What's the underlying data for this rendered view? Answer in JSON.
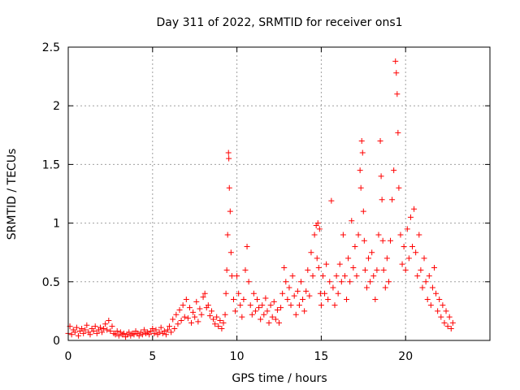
{
  "chart_data": {
    "type": "scatter",
    "title": "Day 311 of 2022, SRMTID for receiver ons1",
    "xlabel": "GPS time / hours",
    "ylabel": "SRMTID / TECUs",
    "xlim": [
      0,
      25
    ],
    "ylim": [
      0,
      2.5
    ],
    "xticks": [
      0,
      5,
      10,
      15,
      20
    ],
    "xtick_labels": [
      "0",
      "5",
      "10",
      "15",
      "20"
    ],
    "yticks": [
      0,
      0.5,
      1,
      1.5,
      2,
      2.5
    ],
    "ytick_labels": [
      "0",
      "0.5",
      "1",
      "1.5",
      "2",
      "2.5"
    ],
    "grid": true,
    "marker": "+",
    "color": "#ff0000",
    "series": [
      {
        "name": "SRMTID",
        "points": [
          [
            0.0,
            0.06
          ],
          [
            0.1,
            0.12
          ],
          [
            0.2,
            0.05
          ],
          [
            0.3,
            0.09
          ],
          [
            0.4,
            0.07
          ],
          [
            0.5,
            0.11
          ],
          [
            0.6,
            0.04
          ],
          [
            0.7,
            0.08
          ],
          [
            0.8,
            0.1
          ],
          [
            0.9,
            0.06
          ],
          [
            1.0,
            0.09
          ],
          [
            1.1,
            0.13
          ],
          [
            1.2,
            0.07
          ],
          [
            1.3,
            0.05
          ],
          [
            1.4,
            0.1
          ],
          [
            1.5,
            0.08
          ],
          [
            1.6,
            0.12
          ],
          [
            1.7,
            0.06
          ],
          [
            1.8,
            0.09
          ],
          [
            1.9,
            0.11
          ],
          [
            2.0,
            0.07
          ],
          [
            2.1,
            0.1
          ],
          [
            2.2,
            0.14
          ],
          [
            2.3,
            0.09
          ],
          [
            2.4,
            0.17
          ],
          [
            2.5,
            0.08
          ],
          [
            2.6,
            0.12
          ],
          [
            2.7,
            0.06
          ],
          [
            2.8,
            0.05
          ],
          [
            2.9,
            0.08
          ],
          [
            3.0,
            0.04
          ],
          [
            3.1,
            0.07
          ],
          [
            3.2,
            0.05
          ],
          [
            3.3,
            0.06
          ],
          [
            3.4,
            0.03
          ],
          [
            3.5,
            0.05
          ],
          [
            3.6,
            0.07
          ],
          [
            3.7,
            0.04
          ],
          [
            3.8,
            0.06
          ],
          [
            3.9,
            0.05
          ],
          [
            4.0,
            0.08
          ],
          [
            4.1,
            0.06
          ],
          [
            4.2,
            0.04
          ],
          [
            4.3,
            0.07
          ],
          [
            4.4,
            0.05
          ],
          [
            4.5,
            0.09
          ],
          [
            4.6,
            0.06
          ],
          [
            4.7,
            0.07
          ],
          [
            4.8,
            0.05
          ],
          [
            4.9,
            0.08
          ],
          [
            5.0,
            0.1
          ],
          [
            5.1,
            0.06
          ],
          [
            5.2,
            0.09
          ],
          [
            5.3,
            0.05
          ],
          [
            5.4,
            0.07
          ],
          [
            5.5,
            0.11
          ],
          [
            5.6,
            0.06
          ],
          [
            5.7,
            0.08
          ],
          [
            5.8,
            0.05
          ],
          [
            5.9,
            0.09
          ],
          [
            6.0,
            0.12
          ],
          [
            6.1,
            0.07
          ],
          [
            6.2,
            0.18
          ],
          [
            6.3,
            0.1
          ],
          [
            6.4,
            0.22
          ],
          [
            6.5,
            0.14
          ],
          [
            6.6,
            0.26
          ],
          [
            6.7,
            0.17
          ],
          [
            6.8,
            0.3
          ],
          [
            6.9,
            0.2
          ],
          [
            7.0,
            0.35
          ],
          [
            7.1,
            0.19
          ],
          [
            7.2,
            0.28
          ],
          [
            7.3,
            0.15
          ],
          [
            7.4,
            0.24
          ],
          [
            7.5,
            0.2
          ],
          [
            7.6,
            0.33
          ],
          [
            7.7,
            0.16
          ],
          [
            7.8,
            0.27
          ],
          [
            7.9,
            0.22
          ],
          [
            8.0,
            0.37
          ],
          [
            8.1,
            0.4
          ],
          [
            8.2,
            0.28
          ],
          [
            8.3,
            0.3
          ],
          [
            8.4,
            0.21
          ],
          [
            8.5,
            0.25
          ],
          [
            8.6,
            0.18
          ],
          [
            8.7,
            0.14
          ],
          [
            8.8,
            0.2
          ],
          [
            8.9,
            0.12
          ],
          [
            9.0,
            0.17
          ],
          [
            9.1,
            0.1
          ],
          [
            9.2,
            0.15
          ],
          [
            9.3,
            0.22
          ],
          [
            9.35,
            0.4
          ],
          [
            9.4,
            0.6
          ],
          [
            9.45,
            0.9
          ],
          [
            9.5,
            1.6
          ],
          [
            9.52,
            1.55
          ],
          [
            9.55,
            1.3
          ],
          [
            9.6,
            1.1
          ],
          [
            9.65,
            0.75
          ],
          [
            9.7,
            0.55
          ],
          [
            9.8,
            0.35
          ],
          [
            9.9,
            0.25
          ],
          [
            10.0,
            0.55
          ],
          [
            10.1,
            0.4
          ],
          [
            10.2,
            0.3
          ],
          [
            10.3,
            0.2
          ],
          [
            10.4,
            0.35
          ],
          [
            10.5,
            0.6
          ],
          [
            10.6,
            0.8
          ],
          [
            10.7,
            0.5
          ],
          [
            10.8,
            0.3
          ],
          [
            10.9,
            0.22
          ],
          [
            11.0,
            0.4
          ],
          [
            11.1,
            0.25
          ],
          [
            11.2,
            0.35
          ],
          [
            11.3,
            0.28
          ],
          [
            11.4,
            0.18
          ],
          [
            11.5,
            0.3
          ],
          [
            11.6,
            0.22
          ],
          [
            11.7,
            0.36
          ],
          [
            11.8,
            0.25
          ],
          [
            11.9,
            0.15
          ],
          [
            12.0,
            0.3
          ],
          [
            12.1,
            0.2
          ],
          [
            12.2,
            0.33
          ],
          [
            12.3,
            0.18
          ],
          [
            12.4,
            0.26
          ],
          [
            12.5,
            0.15
          ],
          [
            12.6,
            0.28
          ],
          [
            12.7,
            0.4
          ],
          [
            12.8,
            0.62
          ],
          [
            12.9,
            0.5
          ],
          [
            13.0,
            0.35
          ],
          [
            13.1,
            0.45
          ],
          [
            13.2,
            0.3
          ],
          [
            13.3,
            0.55
          ],
          [
            13.4,
            0.38
          ],
          [
            13.5,
            0.22
          ],
          [
            13.6,
            0.42
          ],
          [
            13.7,
            0.3
          ],
          [
            13.8,
            0.5
          ],
          [
            13.9,
            0.35
          ],
          [
            14.0,
            0.25
          ],
          [
            14.1,
            0.42
          ],
          [
            14.2,
            0.6
          ],
          [
            14.3,
            0.38
          ],
          [
            14.4,
            0.75
          ],
          [
            14.5,
            0.55
          ],
          [
            14.6,
            0.9
          ],
          [
            14.7,
            0.98
          ],
          [
            14.75,
            0.7
          ],
          [
            14.8,
            1.0
          ],
          [
            14.85,
            0.62
          ],
          [
            14.9,
            0.95
          ],
          [
            14.95,
            0.4
          ],
          [
            15.0,
            0.3
          ],
          [
            15.1,
            0.55
          ],
          [
            15.2,
            0.4
          ],
          [
            15.3,
            0.65
          ],
          [
            15.4,
            0.35
          ],
          [
            15.5,
            0.5
          ],
          [
            15.6,
            1.19
          ],
          [
            15.7,
            0.45
          ],
          [
            15.8,
            0.3
          ],
          [
            15.9,
            0.55
          ],
          [
            16.0,
            0.4
          ],
          [
            16.1,
            0.65
          ],
          [
            16.2,
            0.5
          ],
          [
            16.3,
            0.9
          ],
          [
            16.4,
            0.55
          ],
          [
            16.5,
            0.35
          ],
          [
            16.6,
            0.7
          ],
          [
            16.7,
            0.5
          ],
          [
            16.8,
            1.02
          ],
          [
            16.9,
            0.62
          ],
          [
            17.0,
            0.8
          ],
          [
            17.1,
            0.55
          ],
          [
            17.2,
            0.9
          ],
          [
            17.3,
            1.45
          ],
          [
            17.35,
            1.3
          ],
          [
            17.4,
            1.7
          ],
          [
            17.45,
            1.6
          ],
          [
            17.5,
            1.1
          ],
          [
            17.55,
            0.85
          ],
          [
            17.6,
            0.6
          ],
          [
            17.7,
            0.45
          ],
          [
            17.8,
            0.7
          ],
          [
            17.9,
            0.5
          ],
          [
            18.0,
            0.75
          ],
          [
            18.1,
            0.55
          ],
          [
            18.2,
            0.35
          ],
          [
            18.3,
            0.6
          ],
          [
            18.4,
            0.9
          ],
          [
            18.5,
            1.7
          ],
          [
            18.55,
            1.4
          ],
          [
            18.6,
            1.2
          ],
          [
            18.65,
            0.85
          ],
          [
            18.7,
            0.6
          ],
          [
            18.8,
            0.45
          ],
          [
            18.9,
            0.7
          ],
          [
            19.0,
            0.5
          ],
          [
            19.1,
            0.85
          ],
          [
            19.2,
            1.2
          ],
          [
            19.3,
            1.45
          ],
          [
            19.4,
            2.38
          ],
          [
            19.45,
            2.28
          ],
          [
            19.5,
            2.1
          ],
          [
            19.55,
            1.77
          ],
          [
            19.6,
            1.3
          ],
          [
            19.7,
            0.9
          ],
          [
            19.8,
            0.65
          ],
          [
            19.9,
            0.8
          ],
          [
            20.0,
            0.6
          ],
          [
            20.1,
            0.95
          ],
          [
            20.2,
            0.7
          ],
          [
            20.3,
            1.05
          ],
          [
            20.4,
            0.8
          ],
          [
            20.5,
            1.12
          ],
          [
            20.6,
            0.75
          ],
          [
            20.7,
            0.55
          ],
          [
            20.8,
            0.9
          ],
          [
            20.9,
            0.6
          ],
          [
            21.0,
            0.45
          ],
          [
            21.1,
            0.7
          ],
          [
            21.2,
            0.5
          ],
          [
            21.3,
            0.35
          ],
          [
            21.4,
            0.55
          ],
          [
            21.5,
            0.3
          ],
          [
            21.6,
            0.45
          ],
          [
            21.7,
            0.62
          ],
          [
            21.8,
            0.4
          ],
          [
            21.9,
            0.25
          ],
          [
            22.0,
            0.35
          ],
          [
            22.1,
            0.2
          ],
          [
            22.2,
            0.3
          ],
          [
            22.3,
            0.15
          ],
          [
            22.4,
            0.25
          ],
          [
            22.5,
            0.12
          ],
          [
            22.6,
            0.2
          ],
          [
            22.7,
            0.1
          ],
          [
            22.8,
            0.15
          ]
        ]
      }
    ]
  }
}
